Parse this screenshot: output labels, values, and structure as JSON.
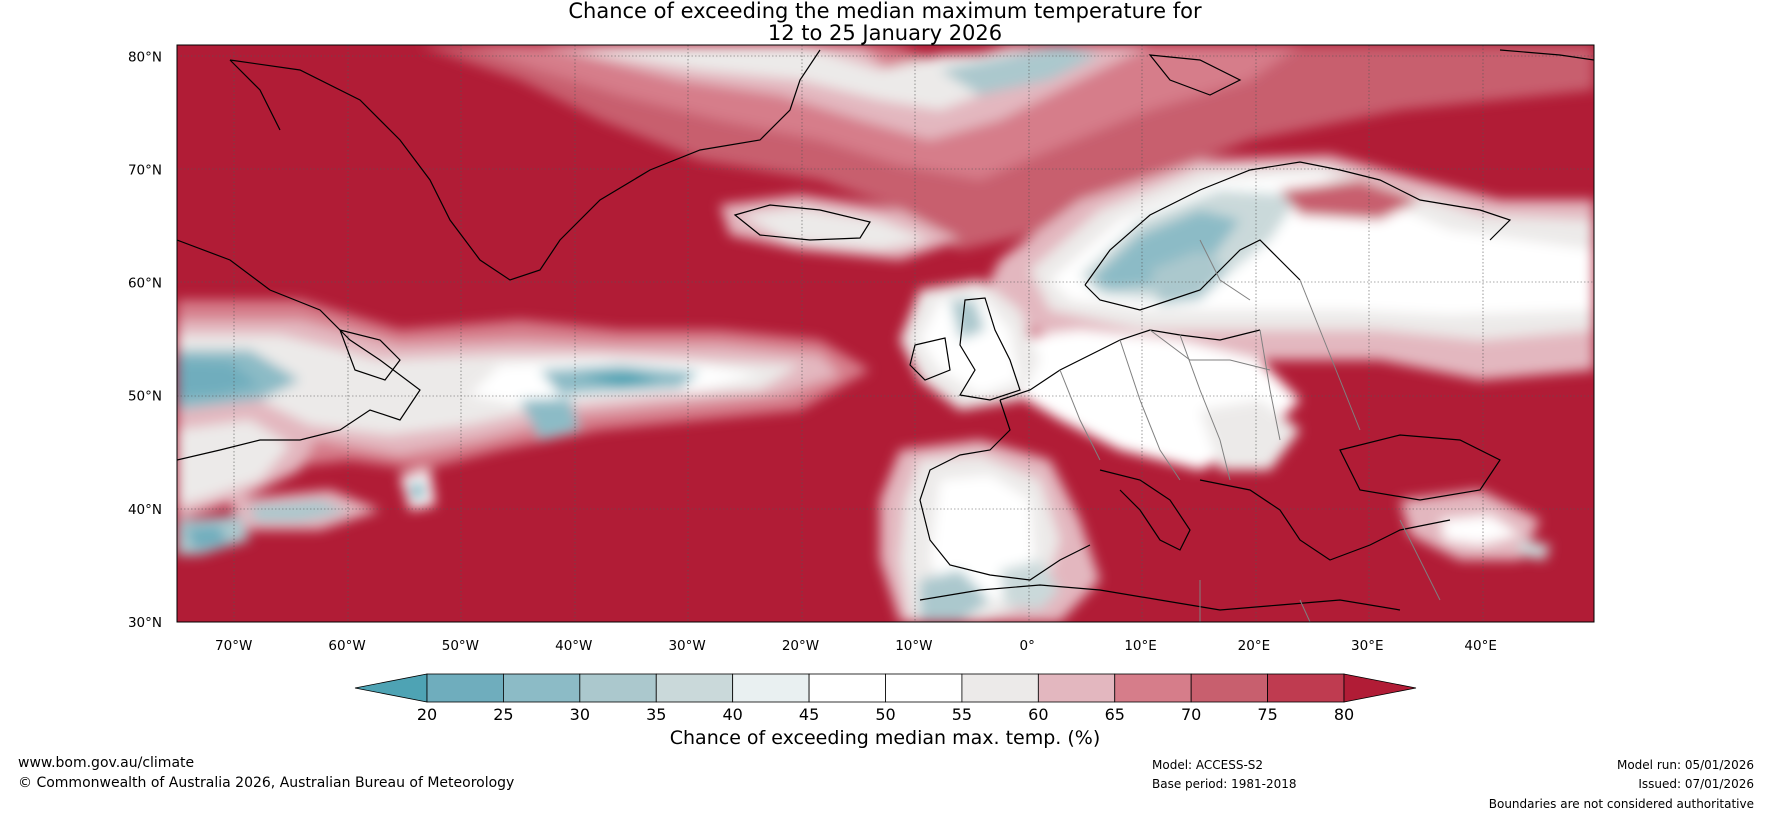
{
  "title": {
    "line1": "Chance of exceeding the median maximum temperature for",
    "line2": "12 to 25 January 2026"
  },
  "map": {
    "lat_labels": [
      "80°N",
      "70°N",
      "60°N",
      "50°N",
      "40°N",
      "30°N"
    ],
    "lon_labels": [
      "70°W",
      "60°W",
      "50°W",
      "40°W",
      "30°W",
      "20°W",
      "10°W",
      "0°",
      "10°E",
      "20°E",
      "30°E",
      "40°E"
    ],
    "lat_range": [
      30,
      81
    ],
    "lon_range": [
      -75,
      50
    ]
  },
  "colorbar": {
    "title": "Chance of exceeding median max. temp. (%)",
    "ticks": [
      "20",
      "25",
      "30",
      "35",
      "40",
      "45",
      "50",
      "55",
      "60",
      "65",
      "70",
      "75",
      "80"
    ],
    "colors": [
      "#4ea3b4",
      "#6fadbd",
      "#8cbbc6",
      "#abc8cd",
      "#cad9da",
      "#e9f0f1",
      "#ffffff",
      "#ffffff",
      "#eceae9",
      "#e3b7bf",
      "#d67d8a",
      "#c85f6e",
      "#bf3b50",
      "#b11c36"
    ]
  },
  "footer": {
    "website": "www.bom.gov.au/climate",
    "copyright": "© Commonwealth of Australia 2026, Australian Bureau of Meteorology",
    "model": "Model: ACCESS-S2",
    "base_period": "Base period: 1981-2018",
    "model_run": "Model run: 05/01/2026",
    "issued": "Issued: 07/01/2026",
    "disclaimer": "Boundaries are not considered authoritative"
  }
}
